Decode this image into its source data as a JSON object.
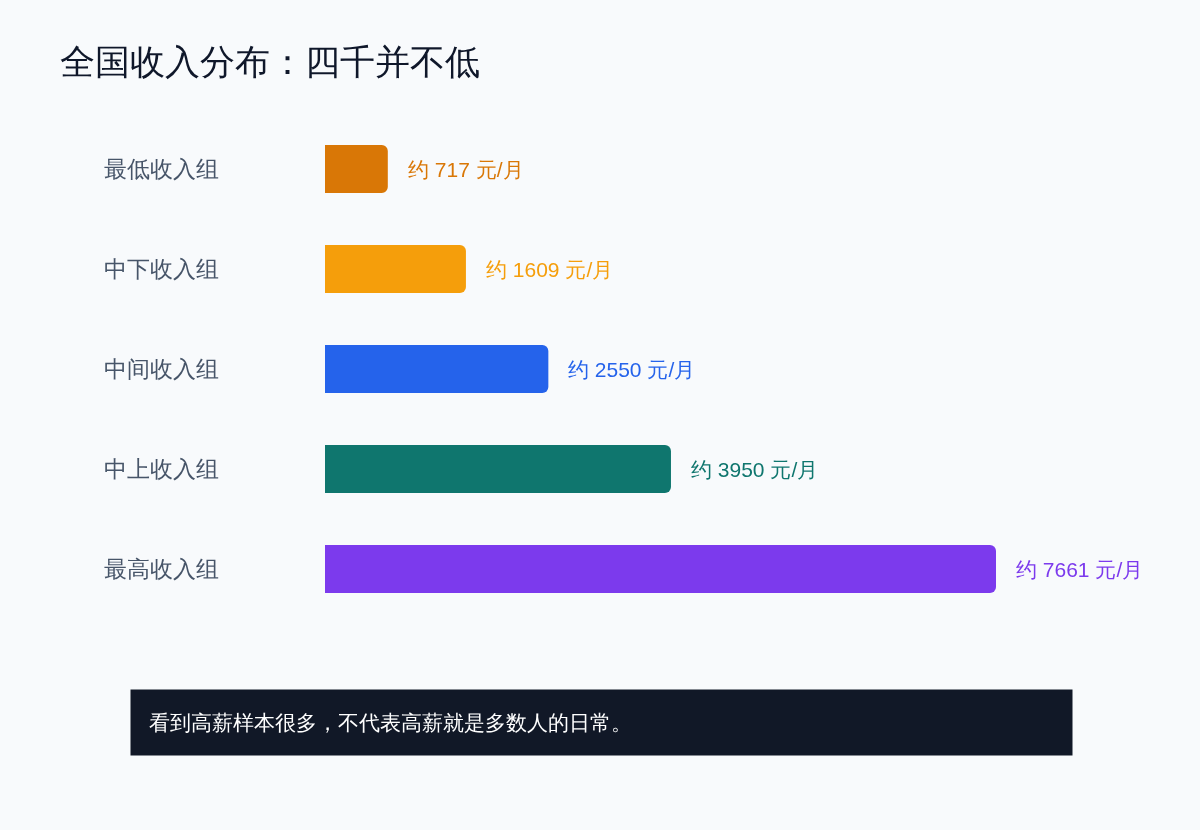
{
  "chart_data": {
    "type": "bar",
    "orientation": "horizontal",
    "title": "全国收入分布：四千并不低",
    "categories": [
      "最低收入组",
      "中下收入组",
      "中间收入组",
      "中上收入组",
      "最高收入组"
    ],
    "values": [
      717,
      1609,
      2550,
      3950,
      7661
    ],
    "colors": [
      "#d97706",
      "#f59e0b",
      "#2563eb",
      "#0f766e",
      "#7c3aed"
    ],
    "value_labels": [
      "约 717 元/月",
      "约 1609 元/月",
      "约 2550 元/月",
      "约 3950 元/月",
      "约 7661 元/月"
    ],
    "annotations": [
      "看到高薪样本很多，不代表高薪就是多数人的日常。"
    ],
    "tick_labels": "y"
  }
}
